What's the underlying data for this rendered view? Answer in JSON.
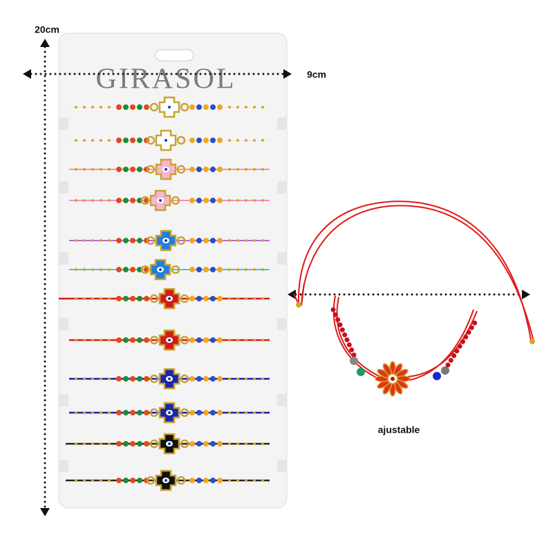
{
  "height_label": "20cm",
  "width_label": "9cm",
  "brand": "GIRASOL",
  "caption": "ajustable"
}
